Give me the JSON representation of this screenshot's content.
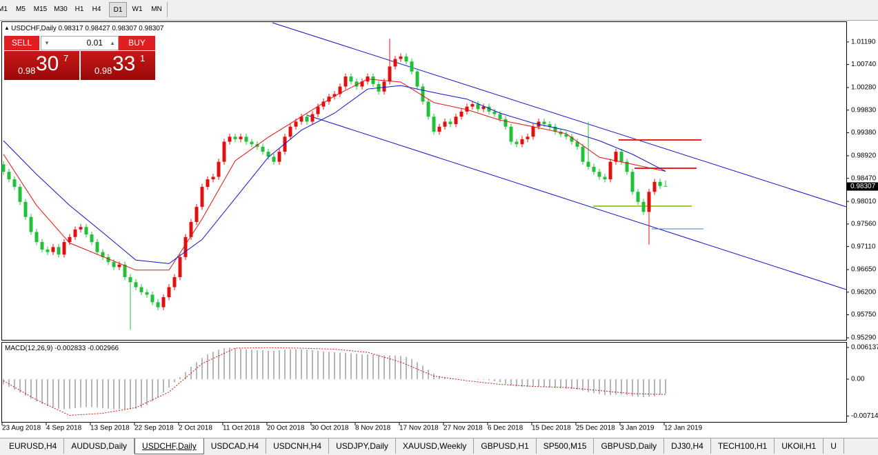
{
  "chart_data": {
    "type": "candlestick",
    "title": "USDCHF,Daily",
    "up_color": "#e01010",
    "down_color": "#22c03a",
    "ylim": [
      0.95249,
      1.01572
    ],
    "yticks": [
      {
        "value": 1.0119,
        "label": "1.01190"
      },
      {
        "value": 1.0074,
        "label": "1.00740"
      },
      {
        "value": 1.0028,
        "label": "1.00280"
      },
      {
        "value": 0.9983,
        "label": "0.99830"
      },
      {
        "value": 0.9938,
        "label": "0.99380"
      },
      {
        "value": 0.9892,
        "label": "0.98920"
      },
      {
        "value": 0.9847,
        "label": "0.98470"
      },
      {
        "value": 0.9801,
        "label": "0.98010"
      },
      {
        "value": 0.9756,
        "label": "0.97560"
      },
      {
        "value": 0.9711,
        "label": "0.97110"
      },
      {
        "value": 0.9665,
        "label": "0.96650"
      },
      {
        "value": 0.962,
        "label": "0.96200"
      },
      {
        "value": 0.9575,
        "label": "0.95750"
      },
      {
        "value": 0.9529,
        "label": "0.95290"
      }
    ],
    "categories": [
      "23 Aug 2018",
      null,
      null,
      null,
      null,
      null,
      null,
      null,
      "4 Sep 2018",
      null,
      null,
      null,
      null,
      null,
      null,
      null,
      "13 Sep 2018",
      null,
      null,
      null,
      null,
      null,
      null,
      null,
      "22 Sep 2018",
      null,
      null,
      null,
      null,
      null,
      null,
      null,
      "2 Oct 2018",
      null,
      null,
      null,
      null,
      null,
      null,
      null,
      "11 Oct 2018",
      null,
      null,
      null,
      null,
      null,
      null,
      null,
      "20 Oct 2018",
      null,
      null,
      null,
      null,
      null,
      null,
      null,
      "30 Oct 2018",
      null,
      null,
      null,
      null,
      null,
      null,
      null,
      "8 Nov 2018",
      null,
      null,
      null,
      null,
      null,
      null,
      null,
      "17 Nov 2018",
      null,
      null,
      null,
      null,
      null,
      null,
      null,
      "27 Nov 2018",
      null,
      null,
      null,
      null,
      null,
      null,
      null,
      "6 Dec 2018",
      null,
      null,
      null,
      null,
      null,
      null,
      null,
      "15 Dec 2018",
      null,
      null,
      null,
      null,
      null,
      null,
      null,
      "25 Dec 2018",
      null,
      null,
      null,
      null,
      null,
      null,
      null,
      "3 Jan 2019",
      null,
      null,
      null,
      null,
      null,
      null,
      null,
      "12 Jan 2019"
    ],
    "open": [
      0.9875,
      0.986,
      0.9845,
      0.983,
      0.98,
      0.977,
      0.974,
      0.972,
      0.9705,
      0.97,
      0.971,
      0.9695,
      0.972,
      0.973,
      0.9745,
      0.975,
      0.9735,
      0.972,
      0.97,
      0.969,
      0.968,
      0.967,
      0.9675,
      0.965,
      0.964,
      0.963,
      0.962,
      0.9615,
      0.96,
      0.959,
      0.961,
      0.963,
      0.965,
      0.969,
      0.973,
      0.976,
      0.979,
      0.983,
      0.9845,
      0.985,
      0.988,
      0.992,
      0.993,
      0.9925,
      0.993,
      0.992,
      0.9915,
      0.991,
      0.99,
      0.989,
      0.988,
      0.99,
      0.993,
      0.995,
      0.996,
      0.997,
      0.996,
      0.9975,
      0.999,
      1.0,
      1.001,
      1.0015,
      1.003,
      1.005,
      1.004,
      1.003,
      1.004,
      1.005,
      1.0035,
      1.002,
      1.004,
      1.007,
      1.0085,
      1.009,
      1.008,
      1.006,
      1.003,
      1.0,
      0.997,
      0.994,
      0.995,
      0.996,
      0.9955,
      0.997,
      0.998,
      0.999,
      0.9995,
      0.9985,
      0.999,
      0.998,
      0.9975,
      0.9965,
      0.995,
      0.992,
      0.9915,
      0.9925,
      0.993,
      0.995,
      0.996,
      0.9955,
      0.995,
      0.994,
      0.9935,
      0.993,
      0.992,
      0.991,
      0.988,
      0.987,
      0.986,
      0.985,
      0.9845,
      0.988,
      0.99,
      0.988,
      0.986,
      0.982,
      0.98,
      0.978,
      0.982,
      0.984,
      0.98317
    ],
    "high": [
      0.9881,
      0.9866,
      0.9851,
      0.9836,
      0.9806,
      0.9776,
      0.9746,
      0.9726,
      0.9711,
      0.9716,
      0.9716,
      0.9726,
      0.9736,
      0.9751,
      0.9756,
      0.9756,
      0.9741,
      0.9726,
      0.9706,
      0.9696,
      0.9686,
      0.9681,
      0.9681,
      0.9656,
      0.9646,
      0.9636,
      0.9626,
      0.9621,
      0.9606,
      0.9616,
      0.9636,
      0.9656,
      0.9696,
      0.9736,
      0.9766,
      0.9796,
      0.9836,
      0.9851,
      0.9856,
      0.9886,
      0.9926,
      0.9936,
      0.9936,
      0.9936,
      0.9936,
      0.9926,
      0.9921,
      0.9916,
      0.9906,
      0.9896,
      0.9906,
      0.9936,
      0.9956,
      0.9966,
      0.9976,
      0.9976,
      0.9981,
      0.9996,
      1.0006,
      1.0016,
      1.0021,
      1.0036,
      1.0056,
      1.0056,
      1.0046,
      1.0046,
      1.0056,
      1.0056,
      1.0041,
      1.0046,
      1.0125,
      1.0091,
      1.0096,
      1.0096,
      1.0086,
      1.0066,
      1.0036,
      1.0006,
      0.9976,
      0.9956,
      0.9966,
      0.9966,
      0.9976,
      0.9986,
      0.9996,
      1.0001,
      1.0001,
      0.9996,
      0.9996,
      0.9986,
      0.9981,
      0.9971,
      0.9956,
      0.9926,
      0.9931,
      0.9936,
      0.9956,
      0.9966,
      0.9966,
      0.9961,
      0.9956,
      0.9946,
      0.9941,
      0.9936,
      0.9926,
      0.9916,
      0.996,
      0.9876,
      0.9866,
      0.9856,
      0.9886,
      0.9906,
      0.9906,
      0.9886,
      0.9866,
      0.9826,
      0.9806,
      0.9826,
      0.9846,
      0.9846,
      0.98427
    ],
    "low": [
      0.9854,
      0.9839,
      0.9824,
      0.9794,
      0.9764,
      0.9734,
      0.9714,
      0.9699,
      0.9694,
      0.9694,
      0.9689,
      0.9689,
      0.9714,
      0.9724,
      0.9739,
      0.9729,
      0.9714,
      0.9694,
      0.9684,
      0.9674,
      0.9664,
      0.9664,
      0.9644,
      0.9545,
      0.9624,
      0.9614,
      0.9609,
      0.9594,
      0.9584,
      0.9584,
      0.9604,
      0.9624,
      0.9644,
      0.9684,
      0.9724,
      0.9754,
      0.9784,
      0.9824,
      0.9839,
      0.9844,
      0.9874,
      0.9914,
      0.9919,
      0.9919,
      0.9914,
      0.9909,
      0.9904,
      0.9894,
      0.9884,
      0.9874,
      0.9874,
      0.9894,
      0.9924,
      0.9944,
      0.9954,
      0.9954,
      0.9954,
      0.9969,
      0.9984,
      0.9994,
      1.0004,
      1.0009,
      1.0024,
      1.0034,
      1.0024,
      1.0024,
      1.0034,
      1.0029,
      1.0014,
      1.0014,
      1.0034,
      1.0064,
      1.0079,
      1.0074,
      1.0054,
      1.0024,
      0.9994,
      0.9964,
      0.9934,
      0.9934,
      0.9944,
      0.9949,
      0.9949,
      0.9964,
      0.9974,
      0.9984,
      0.9979,
      0.9979,
      0.9974,
      0.9969,
      0.9959,
      0.9944,
      0.9914,
      0.9909,
      0.9909,
      0.9919,
      0.9924,
      0.9944,
      0.9949,
      0.9944,
      0.9934,
      0.9929,
      0.9924,
      0.9914,
      0.9904,
      0.9874,
      0.9864,
      0.9854,
      0.9844,
      0.9839,
      0.9839,
      0.9874,
      0.9874,
      0.9854,
      0.9814,
      0.9794,
      0.9774,
      0.9715,
      0.9814,
      0.9826,
      0.98307
    ],
    "close": [
      0.986,
      0.9845,
      0.983,
      0.98,
      0.977,
      0.974,
      0.972,
      0.9705,
      0.97,
      0.971,
      0.9695,
      0.972,
      0.973,
      0.9745,
      0.975,
      0.9735,
      0.972,
      0.97,
      0.969,
      0.968,
      0.967,
      0.9675,
      0.965,
      0.964,
      0.963,
      0.962,
      0.9615,
      0.96,
      0.959,
      0.961,
      0.963,
      0.965,
      0.969,
      0.973,
      0.976,
      0.979,
      0.983,
      0.9845,
      0.985,
      0.988,
      0.992,
      0.993,
      0.9925,
      0.993,
      0.992,
      0.9915,
      0.991,
      0.99,
      0.989,
      0.988,
      0.99,
      0.993,
      0.995,
      0.996,
      0.997,
      0.996,
      0.9975,
      0.999,
      1.0,
      1.001,
      1.0015,
      1.003,
      1.005,
      1.004,
      1.003,
      1.004,
      1.005,
      1.0035,
      1.002,
      1.004,
      1.007,
      1.0085,
      1.009,
      1.008,
      1.006,
      1.003,
      1.0,
      0.997,
      0.994,
      0.995,
      0.996,
      0.9955,
      0.997,
      0.998,
      0.999,
      0.9995,
      0.9985,
      0.999,
      0.998,
      0.9975,
      0.9965,
      0.995,
      0.992,
      0.9915,
      0.9925,
      0.993,
      0.995,
      0.996,
      0.9955,
      0.995,
      0.994,
      0.9935,
      0.993,
      0.992,
      0.991,
      0.988,
      0.987,
      0.986,
      0.985,
      0.9845,
      0.988,
      0.99,
      0.988,
      0.986,
      0.982,
      0.98,
      0.978,
      0.982,
      0.984,
      0.98317,
      0.98307
    ],
    "ma_fast": {
      "color": "#e01010",
      "x": [
        0,
        6,
        12,
        18,
        24,
        30,
        36,
        42,
        48,
        54,
        60,
        66,
        72,
        78,
        84,
        90,
        96,
        102,
        108,
        114,
        120
      ],
      "values": [
        0.9895,
        0.9793,
        0.9718,
        0.9691,
        0.9664,
        0.9664,
        0.9766,
        0.9882,
        0.9929,
        0.997,
        1.0011,
        1.0045,
        1.0039,
        0.9998,
        0.9984,
        0.9963,
        0.995,
        0.9936,
        0.9889,
        0.9875,
        0.9861
      ]
    },
    "ma_slow": {
      "color": "#1010c8",
      "x": [
        0,
        6,
        12,
        18,
        24,
        30,
        36,
        42,
        48,
        54,
        60,
        66,
        72,
        78,
        84,
        90,
        96,
        102,
        108,
        114,
        120
      ],
      "values": [
        0.9922,
        0.9855,
        0.9793,
        0.9739,
        0.9684,
        0.9677,
        0.9725,
        0.9807,
        0.9889,
        0.9943,
        0.9977,
        1.0025,
        1.0032,
        1.0018,
        1.0005,
        0.9977,
        0.9957,
        0.9943,
        0.9922,
        0.9895,
        0.9861
      ]
    },
    "macd": {
      "title": "MACD(12,26,9)",
      "ylim": [
        -0.00827,
        0.00707
      ],
      "yticks": [
        0.006137,
        {
          "value": 0,
          "label": "0.00"
        },
        -0.007142
      ],
      "hist_color": "#b8b8b8",
      "signal_color": "#d01010",
      "values": [
        -0.001,
        -0.0015,
        -0.002,
        -0.0026,
        -0.0032,
        -0.0038,
        -0.0043,
        -0.0048,
        -0.0052,
        -0.0055,
        -0.0057,
        -0.0058,
        -0.0057,
        -0.0056,
        -0.0055,
        -0.0054,
        -0.0054,
        -0.0055,
        -0.0056,
        -0.0057,
        -0.0058,
        -0.0058,
        -0.0058,
        -0.0058,
        -0.0057,
        -0.0055,
        -0.005,
        -0.0043,
        -0.0035,
        -0.0026,
        -0.0016,
        -0.0006,
        0.0004,
        0.0014,
        0.0024,
        0.0033,
        0.0041,
        0.0048,
        0.0053,
        0.0057,
        0.006,
        0.0061,
        0.006,
        0.0059,
        0.0058,
        0.0057,
        0.0056,
        0.0056,
        0.0055,
        0.0055,
        0.0056,
        0.0057,
        0.0058,
        0.0058,
        0.0058,
        0.0057,
        0.0056,
        0.0055,
        0.0054,
        0.0053,
        0.0052,
        0.0051,
        0.0051,
        0.005,
        0.0049,
        0.0048,
        0.0048,
        0.0048,
        0.0047,
        0.0046,
        0.0046,
        0.0046,
        0.0045,
        0.0043,
        0.0039,
        0.0033,
        0.0026,
        0.0018,
        0.0011,
        0.0006,
        0.0003,
        0.0001,
        0.0,
        0.0,
        0.0,
        0.0,
        -0.0001,
        -0.0001,
        -0.0002,
        -0.0004,
        -0.0006,
        -0.0009,
        -0.0012,
        -0.0014,
        -0.0015,
        -0.0015,
        -0.0014,
        -0.0014,
        -0.0015,
        -0.0016,
        -0.0017,
        -0.0018,
        -0.0019,
        -0.0019,
        -0.002,
        -0.0022,
        -0.0025,
        -0.0027,
        -0.0029,
        -0.0031,
        -0.0031,
        -0.003,
        -0.003,
        -0.0031,
        -0.0033,
        -0.0034,
        -0.0035,
        -0.0034,
        -0.0033,
        -0.003,
        -0.002833
      ],
      "signal": {
        "x": [
          0,
          6,
          12,
          18,
          24,
          30,
          36,
          42,
          48,
          54,
          60,
          66,
          72,
          78,
          84,
          90,
          96,
          102,
          108,
          114,
          120
        ],
        "values": [
          -0.0003,
          -0.004,
          -0.007,
          -0.0066,
          -0.0055,
          -0.0025,
          0.003,
          0.006,
          0.0061,
          0.006,
          0.0058,
          0.0052,
          0.0033,
          0.0006,
          -0.0003,
          -0.001,
          -0.0014,
          -0.0016,
          -0.0022,
          -0.0028,
          -0.002966
        ]
      }
    }
  },
  "trade_panel": {
    "sell": "SELL",
    "lot": "0.01",
    "buy": "BUY",
    "sell_price": {
      "big_figure": "0.98",
      "pips": "30",
      "point": "7"
    },
    "buy_price": {
      "big_figure": "0.98",
      "pips": "33",
      "point": "1"
    }
  },
  "timeframes": [
    "M1",
    "M5",
    "M15",
    "M30",
    "H1",
    "H4",
    "D1",
    "W1",
    "MN"
  ],
  "active_timeframe": 6,
  "tabs": [
    "EURUSD,H4",
    "AUDUSD,Daily",
    "USDCHF,Daily",
    "USDCAD,H4",
    "USDCNH,H4",
    "USDJPY,Daily",
    "XAUUSD,Weekly",
    "GBPUSD,H1",
    "SP500,M15",
    "GBPUSD,Daily",
    "DJ30,H4",
    "TECH100,H1",
    "UKOil,H1",
    "U"
  ],
  "active_tab": 2
}
